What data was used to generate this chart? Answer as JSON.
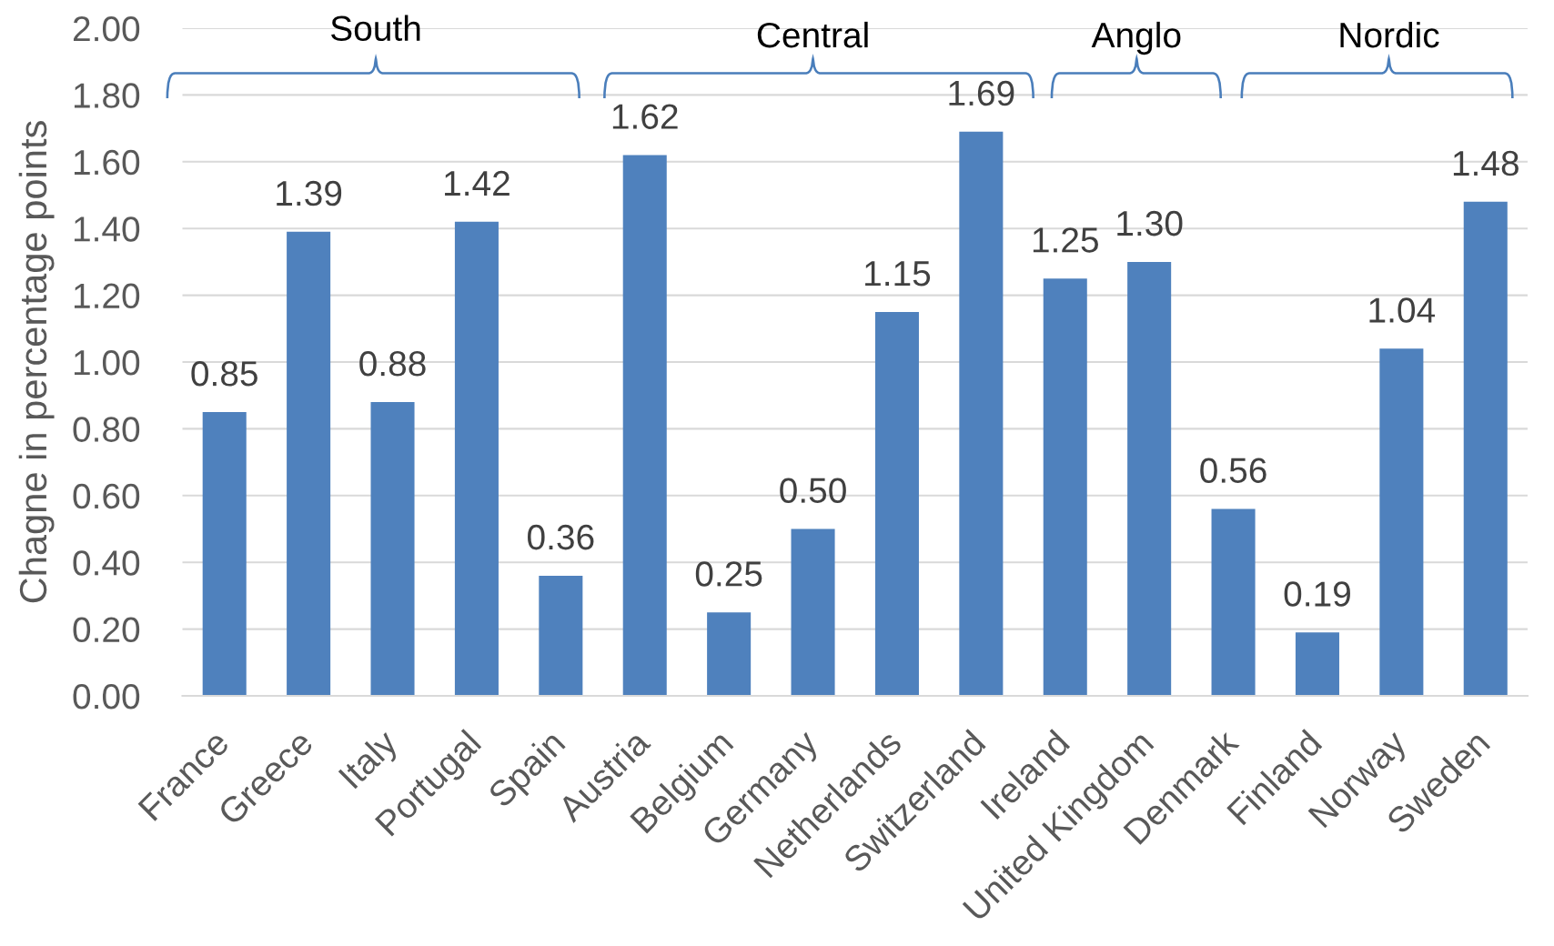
{
  "chart_data": {
    "type": "bar",
    "categories": [
      "France",
      "Greece",
      "Italy",
      "Portugal",
      "Spain",
      "Austria",
      "Belgium",
      "Germany",
      "Netherlands",
      "Switzerland",
      "Ireland",
      "United Kingdom",
      "Denmark",
      "Finland",
      "Norway",
      "Sweden"
    ],
    "values": [
      0.85,
      1.39,
      0.88,
      1.42,
      0.36,
      1.62,
      0.25,
      0.5,
      1.15,
      1.69,
      1.25,
      1.3,
      0.56,
      0.19,
      1.04,
      1.48
    ],
    "value_labels": [
      "0.85",
      "1.39",
      "0.88",
      "1.42",
      "0.36",
      "1.62",
      "0.25",
      "0.50",
      "1.15",
      "1.69",
      "1.25",
      "1.30",
      "0.56",
      "0.19",
      "1.04",
      "1.48"
    ],
    "color": "#4f81bd",
    "ylabel": "Chagne in percentage points",
    "ylim": [
      0,
      2.0
    ],
    "yticks": [
      {
        "value": 0,
        "label": "0.00"
      },
      {
        "value": 0.2,
        "label": "0.20"
      },
      {
        "value": 0.4,
        "label": "0.40"
      },
      {
        "value": 0.6,
        "label": "0.60"
      },
      {
        "value": 0.8,
        "label": "0.80"
      },
      {
        "value": 1.0,
        "label": "1.00"
      },
      {
        "value": 1.2,
        "label": "1.20"
      },
      {
        "value": 1.4,
        "label": "1.40"
      },
      {
        "value": 1.6,
        "label": "1.60"
      },
      {
        "value": 1.8,
        "label": "1.80"
      },
      {
        "value": 2.0,
        "label": "2.00"
      }
    ],
    "grid": "y",
    "annotations": [
      "South",
      "Central",
      "Anglo",
      "Nordic"
    ]
  }
}
